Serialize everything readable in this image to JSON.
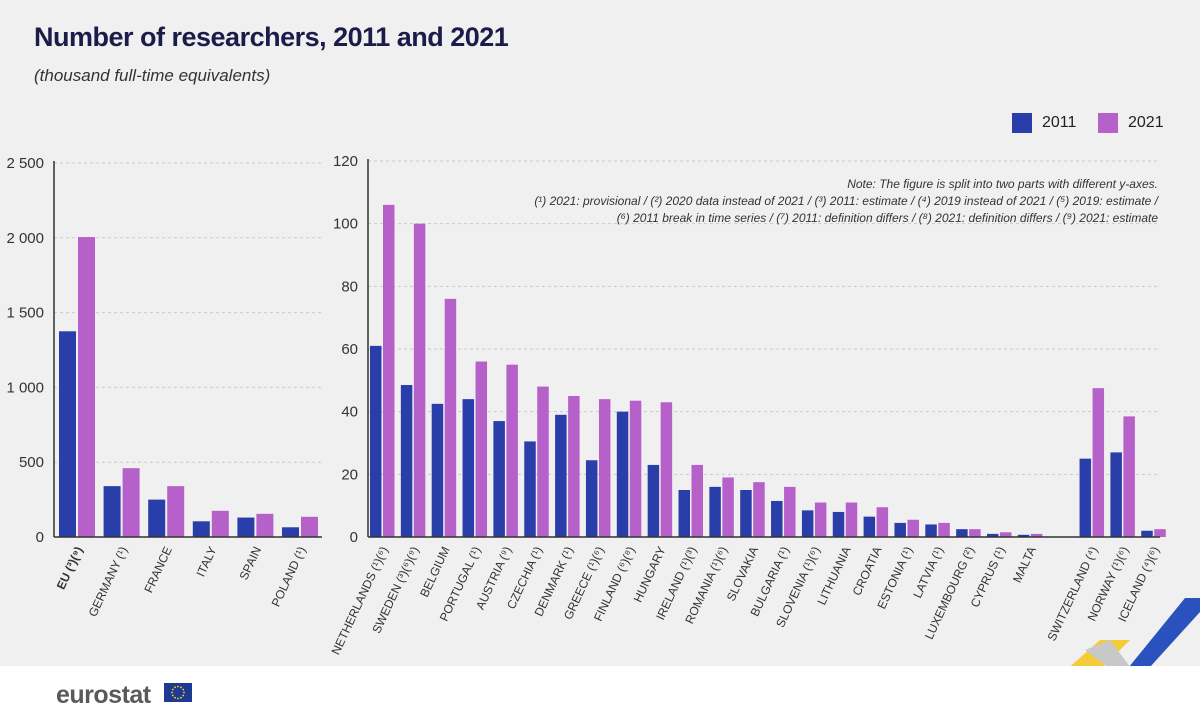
{
  "header": {
    "title": "Number of researchers, 2011 and 2021",
    "subtitle": "(thousand full-time equivalents)"
  },
  "legend": [
    {
      "label": "2011",
      "color": "#2a3eaa"
    },
    {
      "label": "2021",
      "color": "#b661c9"
    }
  ],
  "note": [
    "Note: The figure is split into two parts with different y-axes.",
    "(¹) 2021: provisional / (²) 2020 data instead of 2021 / (³) 2011: estimate / (⁴) 2019 instead of 2021 / (⁵) 2019: estimate /",
    "(⁶) 2011 break in time series / (⁷) 2011: definition differs / (⁸) 2021: definition differs / (⁹) 2021: estimate"
  ],
  "footer": {
    "logo": "eurostat"
  },
  "chart_data": [
    {
      "type": "bar",
      "ylim": [
        0,
        2500
      ],
      "yticks": [
        "0",
        "500",
        "1 000",
        "1 500",
        "2 000",
        "2 500"
      ],
      "ytick_values": [
        0,
        500,
        1000,
        1500,
        2000,
        2500
      ],
      "grid": true,
      "categories": [
        "EU (³)(⁹)",
        "GERMANY (¹)",
        "FRANCE",
        "ITALY",
        "SPAIN",
        "POLAND (¹)"
      ],
      "bold_categories": [
        "EU (³)(⁹)"
      ],
      "series": [
        {
          "name": "2011",
          "values": [
            1375,
            340,
            250,
            105,
            130,
            65
          ]
        },
        {
          "name": "2021",
          "values": [
            2005,
            460,
            340,
            175,
            155,
            135
          ]
        }
      ]
    },
    {
      "type": "bar",
      "ylim": [
        0,
        120
      ],
      "yticks": [
        "0",
        "20",
        "40",
        "60",
        "80",
        "100",
        "120"
      ],
      "ytick_values": [
        0,
        20,
        40,
        60,
        80,
        100,
        120
      ],
      "grid": true,
      "categories": [
        "NETHERLANDS (¹)(⁶)",
        "SWEDEN (³)(⁶)(⁹)",
        "BELGIUM",
        "PORTUGAL (¹)",
        "AUSTRIA (⁹)",
        "CZECHIA (¹)",
        "DENMARK (¹)",
        "GREECE (¹)(⁶)",
        "FINLAND (⁶)(⁸)",
        "HUNGARY",
        "IRELAND (¹)(³)",
        "ROMANIA (¹)(⁶)",
        "SLOVAKIA",
        "BULGARIA (¹)",
        "SLOVENIA (¹)(⁶)",
        "LITHUANIA",
        "CROATIA",
        "ESTONIA (¹)",
        "LATVIA (¹)",
        "LUXEMBOURG (²)",
        "CYPRUS (¹)",
        "MALTA",
        "",
        "SWITZERLAND (⁴)",
        "NORWAY (¹)(⁶)",
        "ICELAND (⁴)(⁶)"
      ],
      "series": [
        {
          "name": "2011",
          "values": [
            61,
            48.5,
            42.5,
            44,
            37,
            30.5,
            39,
            24.5,
            40,
            23,
            15,
            16,
            15,
            11.5,
            8.5,
            8,
            6.5,
            4.5,
            4,
            2.5,
            1,
            0.7,
            null,
            25,
            27,
            2
          ]
        },
        {
          "name": "2021",
          "values": [
            106,
            100,
            76,
            56,
            55,
            48,
            45,
            44,
            43.5,
            43,
            23,
            19,
            17.5,
            16,
            11,
            11,
            9.5,
            5.5,
            4.5,
            2.5,
            1.5,
            1,
            null,
            47.5,
            38.5,
            2.5
          ]
        }
      ]
    }
  ]
}
